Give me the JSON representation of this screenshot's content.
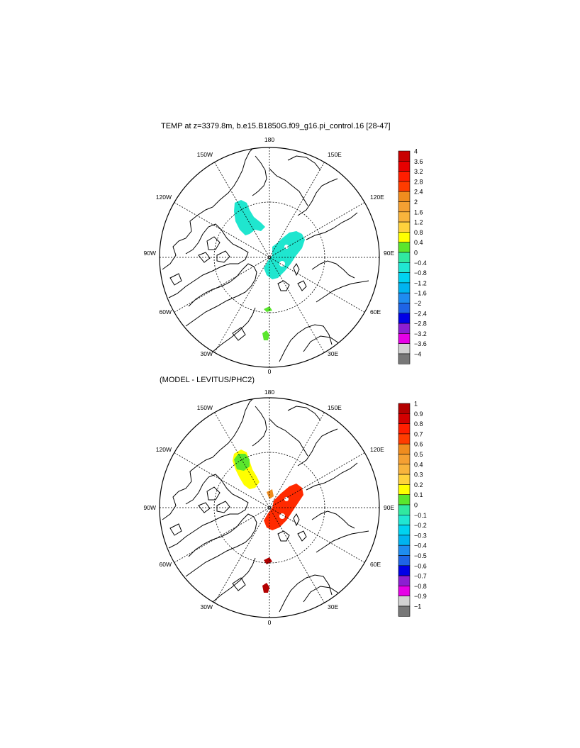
{
  "panels": [
    {
      "title": "TEMP at z=3379.8m, b.e15.B1850G.f09_g16.pi_control.16 [28-47]",
      "lon_labels": [
        "180",
        "150E",
        "120E",
        "90E",
        "60E",
        "30E",
        "0",
        "30W",
        "60W",
        "90W",
        "120W",
        "150W"
      ],
      "colorbar": {
        "labels": [
          "4",
          "3.6",
          "3.2",
          "2.8",
          "2.4",
          "2",
          "1.6",
          "1.2",
          "0.8",
          "0.4",
          "0",
          "−0.4",
          "−0.8",
          "−1.2",
          "−1.6",
          "−2",
          "−2.4",
          "−2.8",
          "−3.2",
          "−3.6",
          "−4"
        ],
        "colors": [
          "#c80000",
          "#e60000",
          "#ff1e00",
          "#ff3c00",
          "#f08c1e",
          "#f5a032",
          "#f8b43c",
          "#ffd23c",
          "#ffff00",
          "#5ae62d",
          "#30e8a0",
          "#20e6d2",
          "#00d2f0",
          "#00b4f0",
          "#1e8cf0",
          "#1e64e6",
          "#0000e6",
          "#8c1ed2",
          "#e600e6",
          "#d2d2d2",
          "#787878"
        ]
      },
      "shading": {
        "main_basin_color": "#1fe6cf",
        "small_patch_color": "#5ae62d"
      }
    },
    {
      "title": "(MODEL - LEVITUS/PHC2)",
      "lon_labels": [
        "180",
        "150E",
        "120E",
        "90E",
        "60E",
        "30E",
        "0",
        "30W",
        "60W",
        "90W",
        "120W",
        "150W"
      ],
      "colorbar": {
        "labels": [
          "1",
          "0.9",
          "0.8",
          "0.7",
          "0.6",
          "0.5",
          "0.4",
          "0.3",
          "0.2",
          "0.1",
          "0",
          "−0.1",
          "−0.2",
          "−0.3",
          "−0.4",
          "−0.5",
          "−0.6",
          "−0.7",
          "−0.8",
          "−0.9",
          "−1"
        ],
        "colors": [
          "#b40000",
          "#d20000",
          "#ff1e00",
          "#ff3c00",
          "#f08c1e",
          "#f5a032",
          "#f8b43c",
          "#ffd23c",
          "#ffff00",
          "#5ae62d",
          "#30e8a0",
          "#20e6d2",
          "#00d2f0",
          "#00b4f0",
          "#1e8cf0",
          "#1e64e6",
          "#0000e6",
          "#8c1ed2",
          "#e600e6",
          "#d2d2d2",
          "#787878"
        ]
      },
      "shading": {
        "main_basin_color": "#ff2a00",
        "yellow_color": "#ffff00",
        "green_color": "#5ae62d",
        "orange_color": "#f08c1e",
        "dark_red_color": "#b40000"
      }
    }
  ]
}
